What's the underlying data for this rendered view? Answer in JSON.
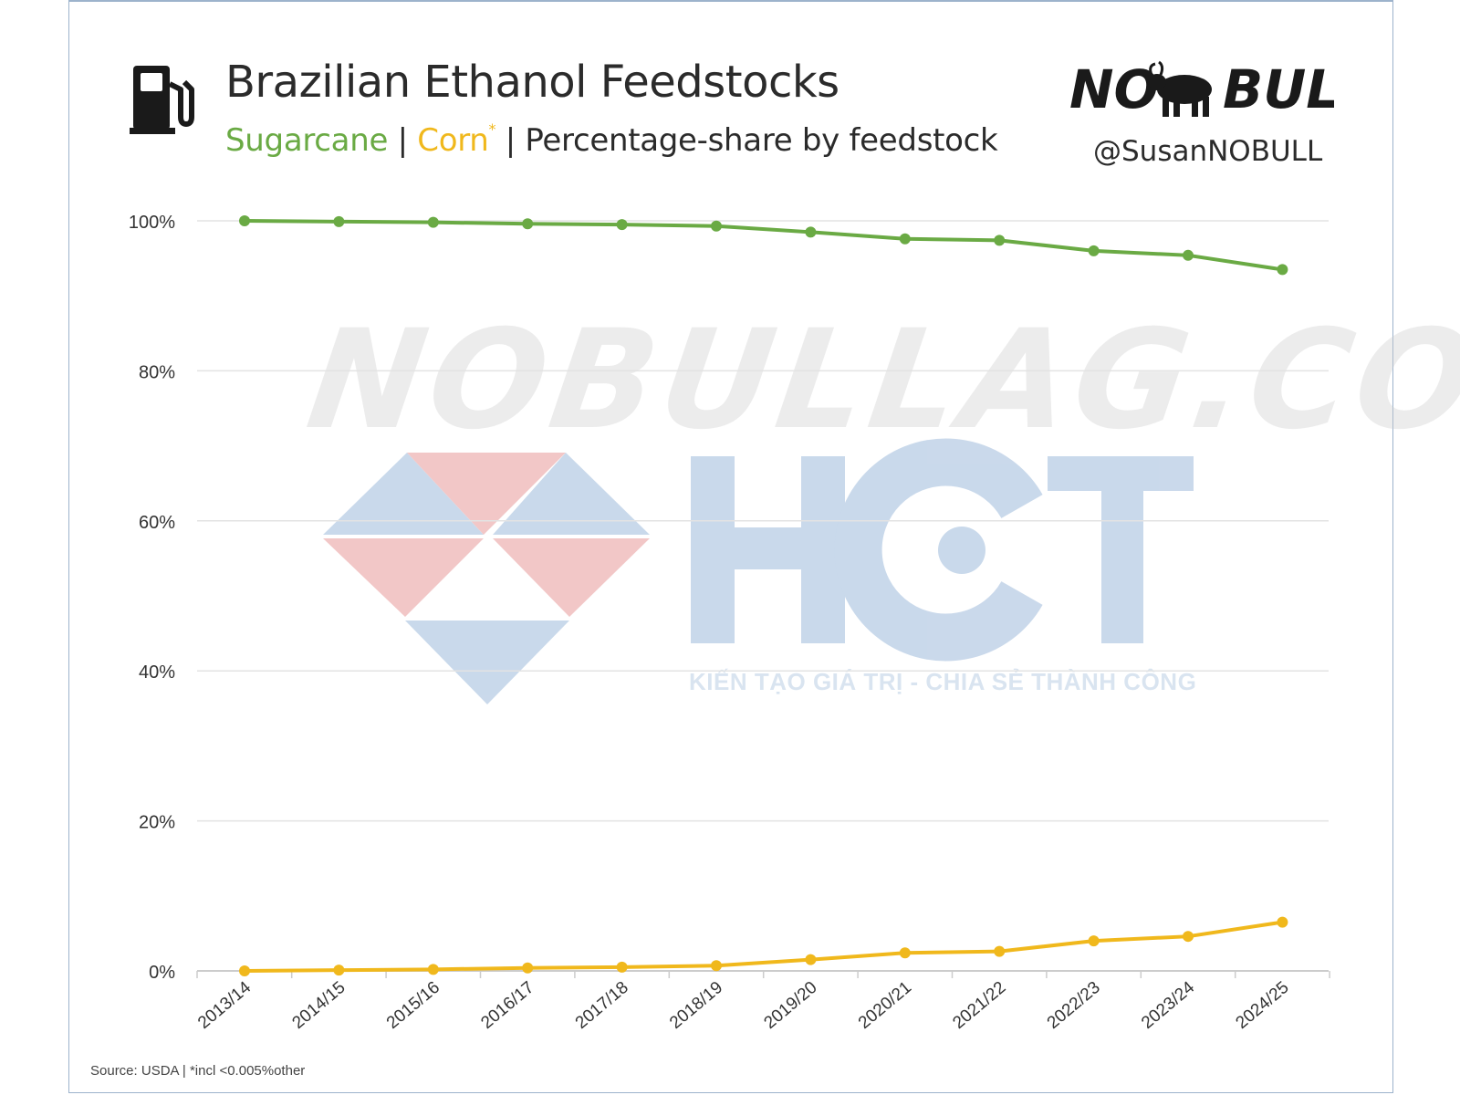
{
  "header": {
    "title": "Brazilian Ethanol Feedstocks",
    "subtitle_sugarcane": "Sugarcane",
    "subtitle_sep1": " | ",
    "subtitle_corn": "Corn",
    "subtitle_corn_mark": "*",
    "subtitle_sep2": " | ",
    "subtitle_rest": "Percentage-share by feedstock",
    "brand": "NO BULL",
    "handle": "@SusanNOBULL"
  },
  "icons": {
    "pump": "fuel-pump-icon",
    "logo": "nobull-bull-logo"
  },
  "watermarks": {
    "site": "NOBULLAG.COM",
    "hct": "HCT",
    "hct_tagline": "KIẾN TẠO GIÁ TRỊ - CHIA SẺ THÀNH CÔNG"
  },
  "footer": {
    "source": "Source: USDA | *incl <0.005%other"
  },
  "colors": {
    "sugarcane": "#6aaa44",
    "corn": "#f0b81c",
    "grid": "#e3e3e3",
    "text": "#2b2b2b"
  },
  "chart_data": {
    "type": "line",
    "title": "Brazilian Ethanol Feedstocks",
    "x": [
      "2013/14",
      "2014/15",
      "2015/16",
      "2016/17",
      "2017/18",
      "2018/19",
      "2019/20",
      "2020/21",
      "2021/22",
      "2022/23",
      "2023/24",
      "2024/25"
    ],
    "y_ticks": [
      "0%",
      "20%",
      "40%",
      "60%",
      "80%",
      "100%"
    ],
    "ylim": [
      0,
      100
    ],
    "grid": true,
    "series": [
      {
        "name": "Sugarcane",
        "color": "#6aaa44",
        "values": [
          100,
          99.9,
          99.8,
          99.6,
          99.5,
          99.3,
          98.5,
          97.6,
          97.4,
          96.0,
          95.4,
          93.5
        ]
      },
      {
        "name": "Corn",
        "color": "#f0b81c",
        "values": [
          0.0,
          0.1,
          0.2,
          0.4,
          0.5,
          0.7,
          1.5,
          2.4,
          2.6,
          4.0,
          4.6,
          6.5
        ]
      }
    ]
  }
}
